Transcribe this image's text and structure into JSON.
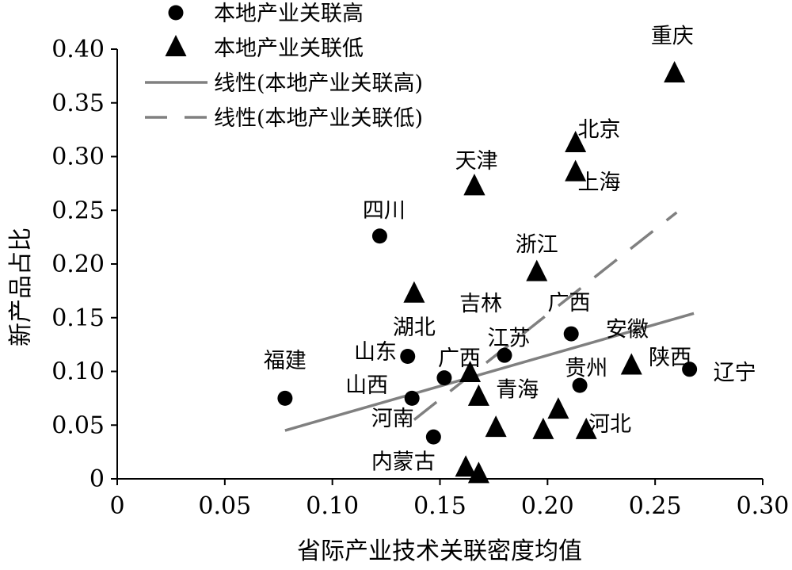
{
  "chart_data": {
    "type": "scatter",
    "xlabel": "省际产业技术关联密度均值",
    "ylabel": "新产品占比",
    "xlim": [
      0,
      0.3
    ],
    "ylim": [
      0,
      0.4
    ],
    "x_ticks": [
      "0",
      "0.05",
      "0.10",
      "0.15",
      "0.20",
      "0.25",
      "0.30"
    ],
    "y_ticks": [
      "0",
      "0.05",
      "0.10",
      "0.15",
      "0.20",
      "0.25",
      "0.30",
      "0.35",
      "0.40"
    ],
    "grid": false,
    "legend_position": "top-left",
    "legend": [
      {
        "label": "本地产业关联高",
        "marker": "circle"
      },
      {
        "label": "本地产业关联低",
        "marker": "triangle"
      },
      {
        "label": "线性(本地产业关联高)",
        "line": "solid"
      },
      {
        "label": "线性(本地产业关联低)",
        "line": "dashed"
      }
    ],
    "series": [
      {
        "name": "本地产业关联高",
        "marker": "circle",
        "points": [
          {
            "label": "福建",
            "x": 0.078,
            "y": 0.075
          },
          {
            "label": "四川",
            "x": 0.122,
            "y": 0.226
          },
          {
            "label": "山东",
            "x": 0.135,
            "y": 0.114
          },
          {
            "label": "山西",
            "x": 0.137,
            "y": 0.075
          },
          {
            "label": "内蒙古",
            "x": 0.147,
            "y": 0.039
          },
          {
            "label": "广西",
            "x": 0.152,
            "y": 0.094
          },
          {
            "label": "江苏",
            "x": 0.18,
            "y": 0.115
          },
          {
            "label": "广西",
            "x": 0.211,
            "y": 0.135
          },
          {
            "label": "贵州",
            "x": 0.215,
            "y": 0.087
          },
          {
            "label": "辽宁",
            "x": 0.266,
            "y": 0.102
          }
        ]
      },
      {
        "name": "本地产业关联低",
        "marker": "triangle",
        "points": [
          {
            "label": "湖北",
            "x": 0.138,
            "y": 0.172
          },
          {
            "label": "吉林",
            "x": 0.166,
            "y": 0.272
          },
          {
            "label": "天津",
            "x": 0.166,
            "y": 0.272
          },
          {
            "label": "青海",
            "x": 0.164,
            "y": 0.098
          },
          {
            "label": "河南",
            "x": 0.168,
            "y": 0.076
          },
          {
            "label": "",
            "x": 0.176,
            "y": 0.047
          },
          {
            "label": "",
            "x": 0.162,
            "y": 0.01
          },
          {
            "label": "",
            "x": 0.168,
            "y": 0.004
          },
          {
            "label": "浙江",
            "x": 0.195,
            "y": 0.192
          },
          {
            "label": "",
            "x": 0.198,
            "y": 0.045
          },
          {
            "label": "",
            "x": 0.205,
            "y": 0.064
          },
          {
            "label": "北京",
            "x": 0.213,
            "y": 0.312
          },
          {
            "label": "上海",
            "x": 0.213,
            "y": 0.285
          },
          {
            "label": "河北",
            "x": 0.218,
            "y": 0.045
          },
          {
            "label": "陕西",
            "x": 0.239,
            "y": 0.105
          },
          {
            "label": "重庆",
            "x": 0.259,
            "y": 0.377
          }
        ]
      }
    ],
    "labels": [
      {
        "text": "重庆",
        "x": 0.258,
        "y": 0.412
      },
      {
        "text": "北京",
        "x": 0.224,
        "y": 0.325
      },
      {
        "text": "天津",
        "x": 0.167,
        "y": 0.296
      },
      {
        "text": "上海",
        "x": 0.224,
        "y": 0.276
      },
      {
        "text": "四川",
        "x": 0.124,
        "y": 0.25
      },
      {
        "text": "浙江",
        "x": 0.195,
        "y": 0.218
      },
      {
        "text": "吉林",
        "x": 0.169,
        "y": 0.163
      },
      {
        "text": "广西",
        "x": 0.21,
        "y": 0.164
      },
      {
        "text": "湖北",
        "x": 0.138,
        "y": 0.141
      },
      {
        "text": "安徽",
        "x": 0.237,
        "y": 0.139
      },
      {
        "text": "江苏",
        "x": 0.182,
        "y": 0.131
      },
      {
        "text": "山东",
        "x": 0.12,
        "y": 0.118
      },
      {
        "text": "广西",
        "x": 0.159,
        "y": 0.112
      },
      {
        "text": "福建",
        "x": 0.078,
        "y": 0.11
      },
      {
        "text": "陕西",
        "x": 0.257,
        "y": 0.113
      },
      {
        "text": "贵州",
        "x": 0.218,
        "y": 0.103
      },
      {
        "text": "辽宁",
        "x": 0.287,
        "y": 0.099
      },
      {
        "text": "山西",
        "x": 0.116,
        "y": 0.087
      },
      {
        "text": "青海",
        "x": 0.186,
        "y": 0.083
      },
      {
        "text": "河南",
        "x": 0.128,
        "y": 0.056
      },
      {
        "text": "河北",
        "x": 0.229,
        "y": 0.051
      },
      {
        "text": "内蒙古",
        "x": 0.133,
        "y": 0.016
      }
    ],
    "trendlines": [
      {
        "name": "线性(本地产业关联高)",
        "style": "solid",
        "color": "#808080",
        "x": [
          0.078,
          0.268
        ],
        "y": [
          0.045,
          0.154
        ]
      },
      {
        "name": "线性(本地产业关联低)",
        "style": "dashed",
        "color": "#808080",
        "x": [
          0.138,
          0.26
        ],
        "y": [
          0.055,
          0.248
        ]
      }
    ]
  }
}
